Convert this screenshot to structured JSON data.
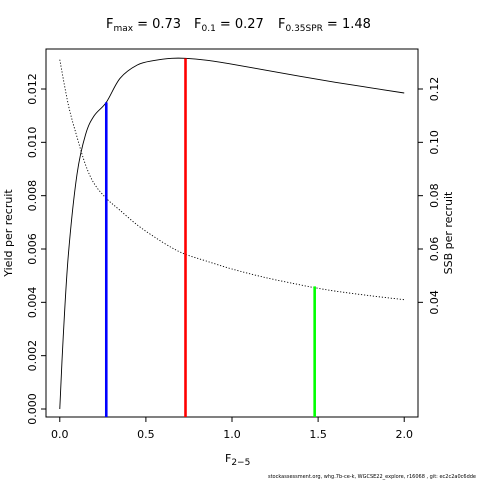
{
  "title": {
    "fmax": {
      "label": "F",
      "sub": "max",
      "value": "= 0.73"
    },
    "f01": {
      "label": "F",
      "sub": "0.1",
      "value": "= 0.27"
    },
    "fspr": {
      "label": "F",
      "sub": "0.35SPR",
      "value": "= 1.48"
    }
  },
  "footer": "stockassessment.org, whg.7b-ce-k, WGCSE22_explore, r16068 , git: ec2c2a0c6dde",
  "chart_data": {
    "type": "line",
    "xlabel": {
      "text": "F",
      "sub": "2−5"
    },
    "ylabel_left": "Yield per recruit",
    "ylabel_right": "SSB per recruit",
    "xlim": [
      -0.08,
      2.08
    ],
    "ylim_left": [
      -0.0003,
      0.0135
    ],
    "ylim_right": [
      -0.003,
      0.135
    ],
    "xticks": [
      0.0,
      0.5,
      1.0,
      1.5,
      2.0
    ],
    "xtick_labels": [
      "0.0",
      "0.5",
      "1.0",
      "1.5",
      "2.0"
    ],
    "yticks_left": [
      0.0,
      0.002,
      0.004,
      0.006,
      0.008,
      0.01,
      0.012
    ],
    "ytick_labels_left": [
      "0.000",
      "0.002",
      "0.004",
      "0.006",
      "0.008",
      "0.010",
      "0.012"
    ],
    "yticks_right": [
      0.04,
      0.06,
      0.08,
      0.1,
      0.12
    ],
    "ytick_labels_right": [
      "0.04",
      "0.06",
      "0.08",
      "0.10",
      "0.12"
    ],
    "series": [
      {
        "axis": "left",
        "style": "solid",
        "color": "#000000",
        "x": [
          0.0,
          0.02,
          0.05,
          0.1,
          0.15,
          0.2,
          0.27,
          0.35,
          0.45,
          0.55,
          0.65,
          0.73,
          0.85,
          1.0,
          1.2,
          1.4,
          1.6,
          1.8,
          2.0
        ],
        "y": [
          0.0,
          0.0027,
          0.0058,
          0.0088,
          0.0103,
          0.011,
          0.0115,
          0.0124,
          0.0129,
          0.01307,
          0.01315,
          0.01315,
          0.01308,
          0.01293,
          0.0127,
          0.01247,
          0.01225,
          0.01205,
          0.01185
        ]
      },
      {
        "axis": "right",
        "style": "dotted",
        "color": "#000000",
        "x": [
          0.0,
          0.05,
          0.1,
          0.15,
          0.2,
          0.27,
          0.35,
          0.45,
          0.55,
          0.65,
          0.73,
          0.85,
          1.0,
          1.2,
          1.4,
          1.48,
          1.6,
          1.8,
          2.0
        ],
        "y": [
          0.131,
          0.114,
          0.102,
          0.0915,
          0.0845,
          0.079,
          0.0745,
          0.069,
          0.0645,
          0.0605,
          0.058,
          0.0555,
          0.0525,
          0.0492,
          0.0465,
          0.0455,
          0.0442,
          0.0425,
          0.041
        ]
      }
    ],
    "reference_lines": [
      {
        "name": "Fmax",
        "x": 0.73,
        "y_top": 0.01315,
        "color": "#ff0000"
      },
      {
        "name": "F0.1",
        "x": 0.27,
        "y_top": 0.0115,
        "color": "#0000ff"
      },
      {
        "name": "F0.35SPR",
        "x": 1.48,
        "y_top": 0.0046,
        "color": "#00ff00"
      }
    ]
  }
}
